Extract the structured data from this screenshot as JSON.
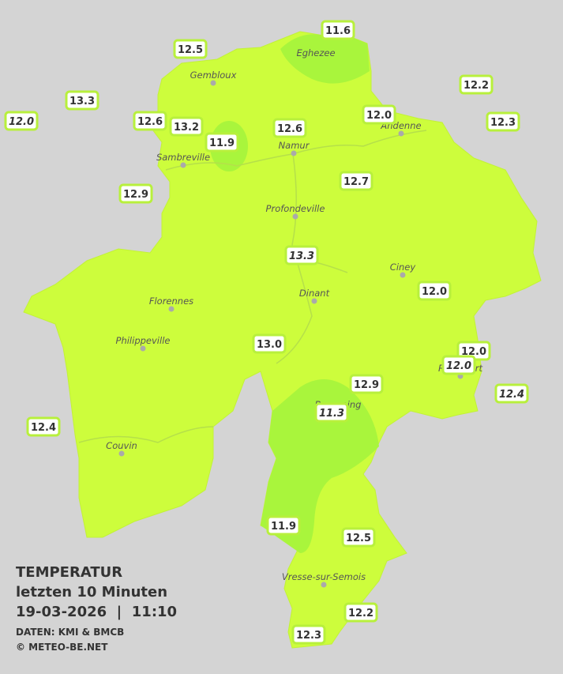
{
  "legend": {
    "title": "TEMPERATUR",
    "period": "letzten 10 Minuten",
    "timestamp": "19-03-2026  |  11:10",
    "source": "DATEN: KMI & BMCB",
    "copyright": "© METEO-BE.NET"
  },
  "cities": [
    "Eghezee",
    "Gembloux",
    "Andenne",
    "Namur",
    "Sambreville",
    "Profondeville",
    "Ciney",
    "Dinant",
    "Florennes",
    "Philippeville",
    "Rochefort",
    "Beauraing",
    "Couvin",
    "Vresse-sur-Semois"
  ],
  "stations": [
    {
      "value": "11.6",
      "italic": false
    },
    {
      "value": "12.5",
      "italic": false
    },
    {
      "value": "12.2",
      "italic": false
    },
    {
      "value": "13.3",
      "italic": false
    },
    {
      "value": "12.0",
      "italic": true
    },
    {
      "value": "12.6",
      "italic": false
    },
    {
      "value": "13.2",
      "italic": false
    },
    {
      "value": "11.9",
      "italic": false
    },
    {
      "value": "12.6",
      "italic": false
    },
    {
      "value": "12.0",
      "italic": false
    },
    {
      "value": "12.3",
      "italic": false
    },
    {
      "value": "12.9",
      "italic": false
    },
    {
      "value": "12.7",
      "italic": false
    },
    {
      "value": "13.3",
      "italic": true
    },
    {
      "value": "12.0",
      "italic": false
    },
    {
      "value": "13.0",
      "italic": false
    },
    {
      "value": "12.0",
      "italic": false
    },
    {
      "value": "12.0",
      "italic": true
    },
    {
      "value": "12.9",
      "italic": false
    },
    {
      "value": "12.4",
      "italic": true
    },
    {
      "value": "11.3",
      "italic": true
    },
    {
      "value": "12.4",
      "italic": false
    },
    {
      "value": "11.9",
      "italic": false
    },
    {
      "value": "12.5",
      "italic": false
    },
    {
      "value": "12.2",
      "italic": false
    },
    {
      "value": "12.3",
      "italic": false
    }
  ]
}
